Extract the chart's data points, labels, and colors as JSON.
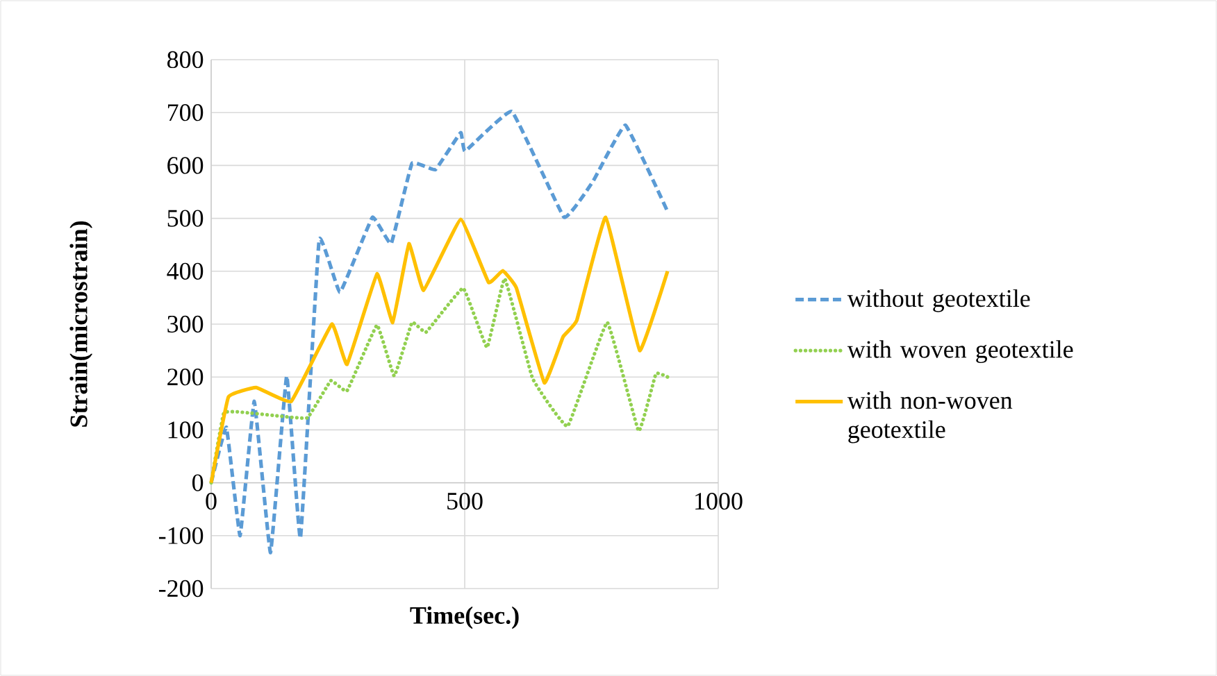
{
  "chart_data": {
    "type": "line",
    "xlabel": "Time(sec.)",
    "ylabel": "Strain(microstrain)",
    "xlim": [
      0,
      1000
    ],
    "xticks": [
      0,
      500,
      1000
    ],
    "ylim": [
      -200,
      800
    ],
    "yticks": [
      -200,
      -100,
      0,
      100,
      200,
      300,
      400,
      500,
      600,
      700,
      800
    ],
    "grid": true,
    "legend": "right",
    "series": [
      {
        "name": "without geotextile",
        "color": "#5b9bd5",
        "line_style": "dashed",
        "x": [
          0,
          30,
          57,
          85,
          117,
          149,
          176,
          213,
          254,
          318,
          355,
          396,
          442,
          492,
          501,
          593,
          696,
          753,
          817,
          900
        ],
        "values": [
          0,
          105,
          -100,
          154,
          -132,
          202,
          -105,
          460,
          360,
          502,
          452,
          604,
          592,
          662,
          627,
          702,
          502,
          570,
          676,
          513
        ]
      },
      {
        "name": "with woven geotextile",
        "color": "#92d050",
        "line_style": "dotted",
        "x": [
          0,
          25,
          76,
          126,
          190,
          236,
          268,
          327,
          361,
          396,
          424,
          497,
          544,
          579,
          634,
          703,
          781,
          843,
          877,
          900
        ],
        "values": [
          0,
          132,
          132,
          127,
          123,
          193,
          174,
          298,
          202,
          303,
          285,
          368,
          256,
          386,
          197,
          107,
          303,
          98,
          206,
          200
        ]
      },
      {
        "name": "with non-woven geotextile",
        "color": "#ffc000",
        "line_style": "solid",
        "x": [
          0,
          34,
          89,
          158,
          238,
          268,
          327,
          358,
          390,
          419,
          492,
          547,
          575,
          602,
          657,
          694,
          721,
          778,
          845,
          900
        ],
        "values": [
          0,
          162,
          180,
          154,
          300,
          224,
          395,
          303,
          452,
          364,
          498,
          379,
          401,
          368,
          189,
          276,
          307,
          502,
          250,
          400
        ]
      }
    ]
  }
}
